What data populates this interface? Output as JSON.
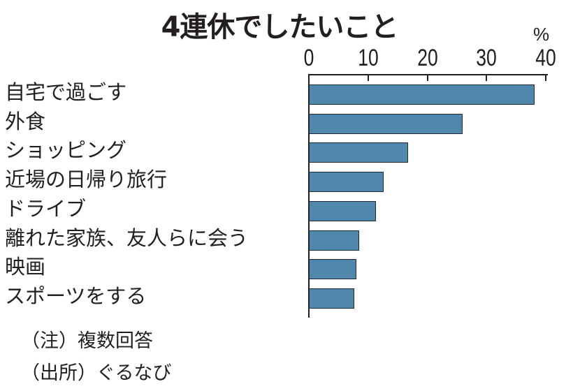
{
  "chart_data": {
    "type": "bar",
    "orientation": "horizontal",
    "title": "4連休でしたいこと",
    "unit": "%",
    "xlabel": "",
    "ylabel": "",
    "xlim": [
      0,
      40
    ],
    "ticks": [
      "0",
      "10",
      "20",
      "30",
      "40"
    ],
    "tick_values": [
      0,
      10,
      20,
      30,
      40
    ],
    "grid": false,
    "legend": null,
    "categories": [
      "自宅で過ごす",
      "外食",
      "ショッピング",
      "近場の日帰り旅行",
      "ドライブ",
      "離れた家族、友人らに会う",
      "映画",
      "スポーツをする"
    ],
    "values": [
      38.2,
      26.1,
      16.9,
      12.7,
      11.4,
      8.6,
      8.1,
      7.8
    ],
    "bar_color": "#4f87ad",
    "notes": [
      "（注）複数回答",
      "（出所）ぐるなび"
    ]
  }
}
